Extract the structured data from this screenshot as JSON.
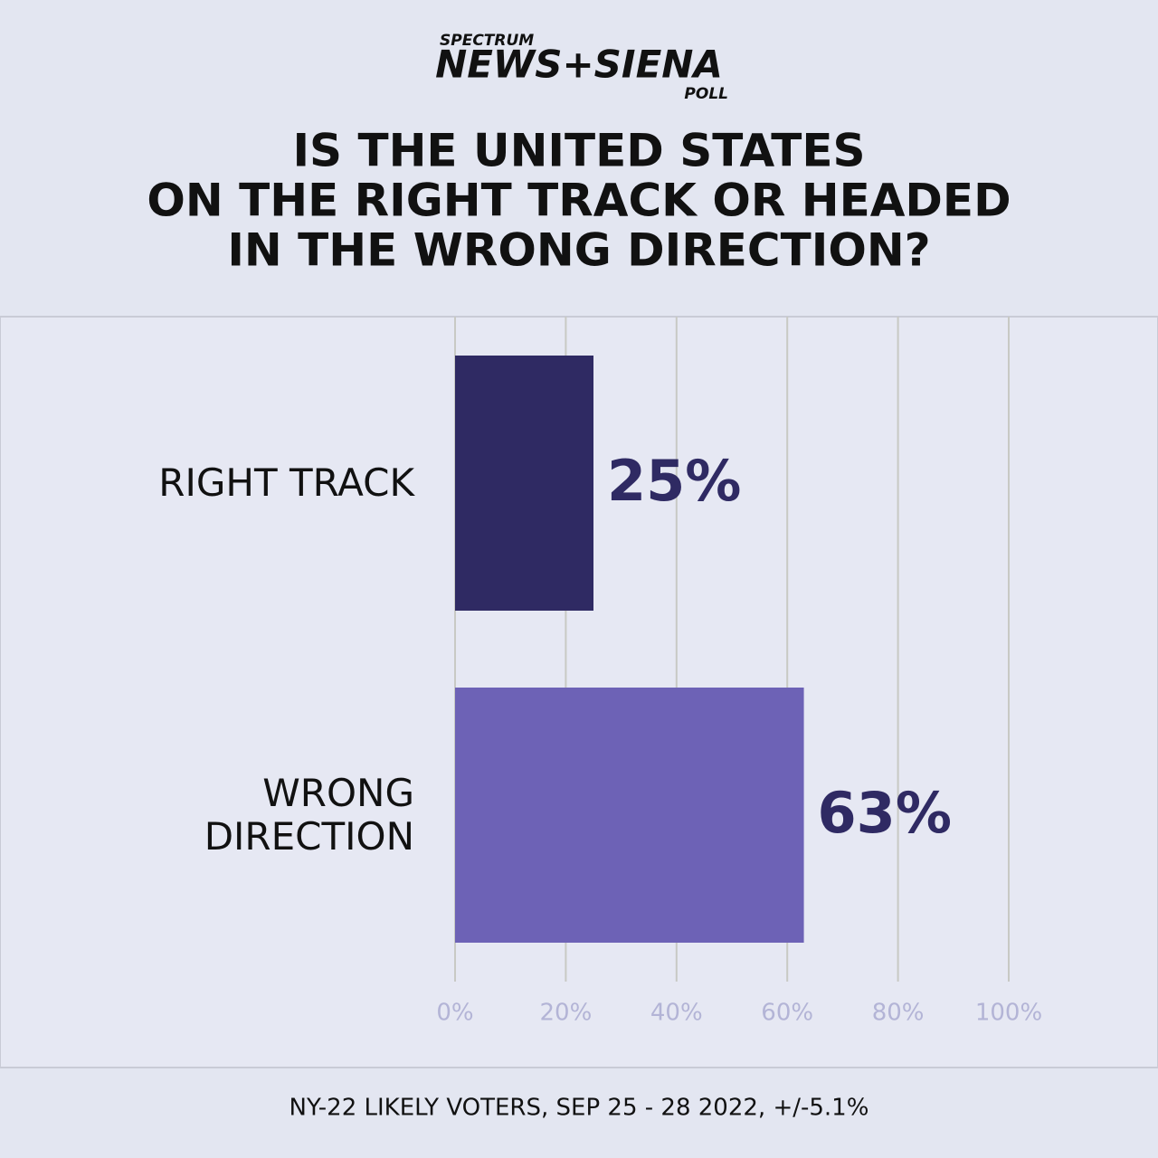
{
  "logo": {
    "top": "SPECTRUM",
    "main": "NEWS+SIENA",
    "bottom": "POLL"
  },
  "chart_data": {
    "type": "hbar",
    "title": [
      "IS THE UNITED STATES",
      "ON THE RIGHT TRACK OR HEADED",
      "IN THE WRONG DIRECTION?"
    ],
    "categories": [
      "RIGHT TRACK",
      "WRONG DIRECTION"
    ],
    "values": [
      25,
      63
    ],
    "value_labels": [
      "25%",
      "63%"
    ],
    "colors": [
      "#2f2a63",
      "#6d62b6"
    ],
    "xlim": [
      0,
      100
    ],
    "xticks": [
      {
        "value": 0,
        "label": "0%"
      },
      {
        "value": 20,
        "label": "20%"
      },
      {
        "value": 40,
        "label": "40%"
      },
      {
        "value": 60,
        "label": "60%"
      },
      {
        "value": 80,
        "label": "80%"
      },
      {
        "value": 100,
        "label": "100%"
      }
    ],
    "grid": true,
    "footnote": "NY-22 LIKELY VOTERS, SEP 25 - 28 2022, +/-5.1%"
  }
}
